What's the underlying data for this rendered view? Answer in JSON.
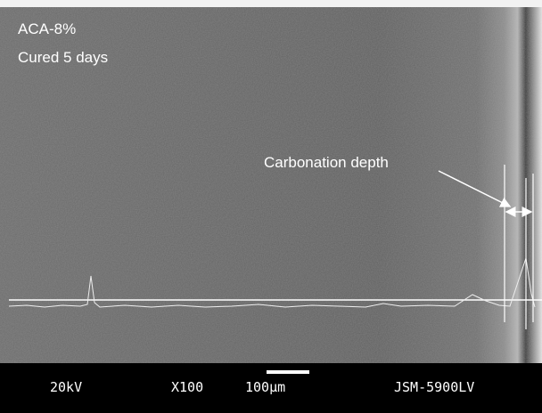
{
  "labels": {
    "sample": "ACA-8%",
    "curing": "Cured 5 days",
    "annotation": "Carbonation depth"
  },
  "info_bar": {
    "voltage": "20kV",
    "magnification": "X100",
    "scale": "100µm",
    "instrument": "JSM-5900LV"
  }
}
